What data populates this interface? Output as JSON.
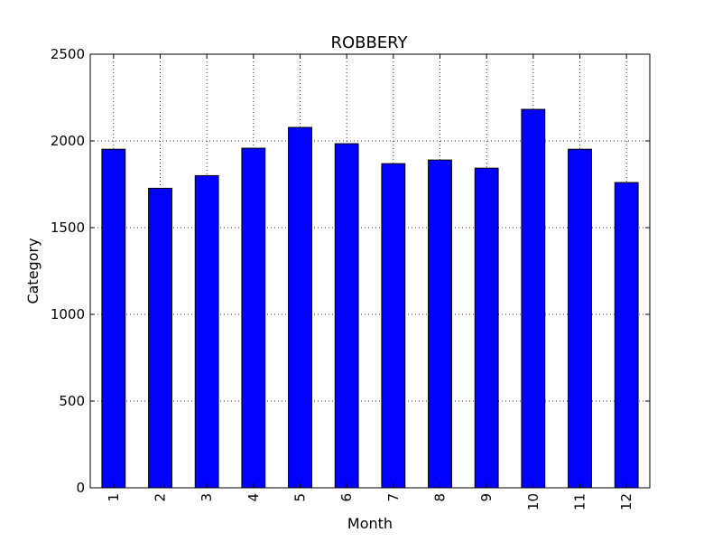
{
  "chart_data": {
    "type": "bar",
    "title": "ROBBERY",
    "xlabel": "Month",
    "ylabel": "Category",
    "categories": [
      "1",
      "2",
      "3",
      "4",
      "5",
      "6",
      "7",
      "8",
      "9",
      "10",
      "11",
      "12"
    ],
    "values": [
      1952,
      1727,
      1800,
      1958,
      2078,
      1984,
      1869,
      1890,
      1843,
      2182,
      1952,
      1760
    ],
    "ylim": [
      0,
      2500
    ],
    "yticks": [
      "0",
      "500",
      "1000",
      "1500",
      "2000",
      "2500"
    ],
    "grid": true,
    "legend": "none",
    "bar_color": "#0000ff",
    "edge_color": "#000000"
  }
}
